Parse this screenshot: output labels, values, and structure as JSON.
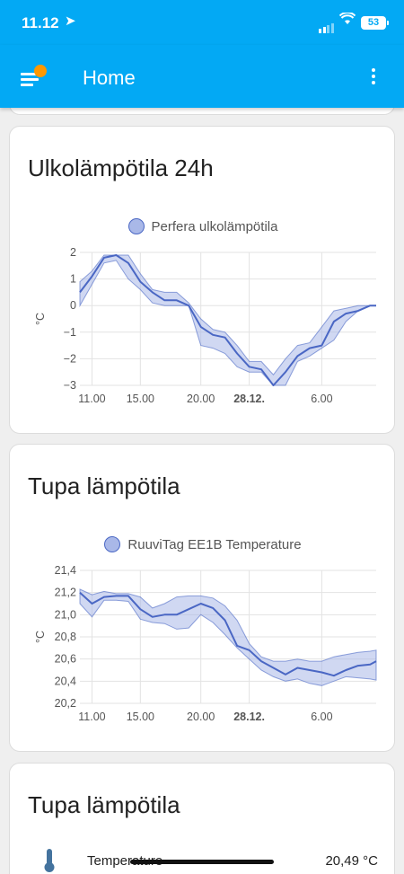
{
  "status_bar": {
    "time": "11.12",
    "battery": "53"
  },
  "app_bar": {
    "title": "Home"
  },
  "colors": {
    "primary": "#03a9f4",
    "badge": "#ff9800",
    "line": "#4a67c4",
    "band": "#a9b8e8"
  },
  "cards": [
    {
      "title": "Ulkolämpötila 24h",
      "legend": "Perfera ulkolämpötila",
      "ylabel": "°C",
      "yticks": [
        "2",
        "1",
        "0",
        "−1",
        "−2",
        "−3"
      ],
      "xticks": [
        {
          "label": "11.00",
          "bold": false
        },
        {
          "label": "15.00",
          "bold": false
        },
        {
          "label": "20.00",
          "bold": false
        },
        {
          "label": "28.12.",
          "bold": true
        },
        {
          "label": "6.00",
          "bold": false
        }
      ]
    },
    {
      "title": "Tupa lämpötila",
      "legend": "RuuviTag EE1B Temperature",
      "ylabel": "°C",
      "yticks": [
        "21,4",
        "21,2",
        "21,0",
        "20,8",
        "20,6",
        "20,4",
        "20,2"
      ],
      "xticks": [
        {
          "label": "11.00",
          "bold": false
        },
        {
          "label": "15.00",
          "bold": false
        },
        {
          "label": "20.00",
          "bold": false
        },
        {
          "label": "28.12.",
          "bold": true
        },
        {
          "label": "6.00",
          "bold": false
        }
      ]
    },
    {
      "title": "Tupa lämpötila",
      "entity": {
        "name": "Temperature",
        "value": "20,49 °C",
        "icon": "thermometer-icon"
      }
    }
  ],
  "chart_data": [
    {
      "type": "line",
      "title": "Ulkolämpötila 24h",
      "ylabel": "°C",
      "ylim": [
        -3,
        2
      ],
      "x_range_hours": [
        10,
        34.5
      ],
      "x_ticks": [
        "11.00",
        "15.00",
        "20.00",
        "28.12.",
        "6.00"
      ],
      "series": [
        {
          "name": "Perfera ulkolämpötila",
          "x_hours": [
            10,
            11,
            12,
            13,
            14,
            15,
            16,
            17,
            18,
            19,
            20,
            21,
            22,
            23,
            24,
            25,
            26,
            27,
            28,
            29,
            30,
            31,
            32,
            33,
            34,
            34.5
          ],
          "mean": [
            0.5,
            1.1,
            1.8,
            1.9,
            1.6,
            0.9,
            0.5,
            0.2,
            0.2,
            0,
            -0.8,
            -1.1,
            -1.2,
            -1.8,
            -2.3,
            -2.4,
            -3,
            -2.5,
            -1.9,
            -1.6,
            -1.5,
            -0.6,
            -0.3,
            -0.2,
            0,
            0
          ],
          "min": [
            0,
            0.8,
            1.6,
            1.7,
            1.0,
            0.6,
            0.1,
            0,
            0,
            0,
            -1.5,
            -1.6,
            -1.8,
            -2.3,
            -2.5,
            -2.5,
            -3,
            -3,
            -2.1,
            -1.9,
            -1.6,
            -1.3,
            -0.6,
            -0.2,
            0,
            0
          ],
          "max": [
            0.9,
            1.3,
            1.9,
            1.9,
            1.9,
            1.2,
            0.6,
            0.5,
            0.5,
            0.1,
            -0.5,
            -0.9,
            -1.0,
            -1.5,
            -2.1,
            -2.1,
            -2.6,
            -2.0,
            -1.5,
            -1.4,
            -0.8,
            -0.2,
            -0.1,
            0,
            0,
            0
          ]
        }
      ]
    },
    {
      "type": "line",
      "title": "Tupa lämpötila",
      "ylabel": "°C",
      "ylim": [
        20.2,
        21.4
      ],
      "x_range_hours": [
        10,
        34.5
      ],
      "x_ticks": [
        "11.00",
        "15.00",
        "20.00",
        "28.12.",
        "6.00"
      ],
      "series": [
        {
          "name": "RuuviTag EE1B Temperature",
          "x_hours": [
            10,
            11,
            12,
            13,
            14,
            15,
            16,
            17,
            18,
            19,
            20,
            21,
            22,
            23,
            24,
            25,
            26,
            27,
            28,
            29,
            30,
            31,
            32,
            33,
            34,
            34.5
          ],
          "mean": [
            21.2,
            21.1,
            21.16,
            21.17,
            21.17,
            21.05,
            20.98,
            21.0,
            21.0,
            21.05,
            21.1,
            21.06,
            20.95,
            20.72,
            20.68,
            20.58,
            20.52,
            20.46,
            20.52,
            20.5,
            20.48,
            20.45,
            20.5,
            20.54,
            20.55,
            20.58
          ],
          "min": [
            21.1,
            20.98,
            21.13,
            21.13,
            21.12,
            20.96,
            20.93,
            20.92,
            20.87,
            20.88,
            21.0,
            20.93,
            20.82,
            20.7,
            20.6,
            20.5,
            20.44,
            20.4,
            20.42,
            20.38,
            20.36,
            20.4,
            20.44,
            20.43,
            20.42,
            20.41
          ],
          "max": [
            21.23,
            21.18,
            21.21,
            21.19,
            21.19,
            21.16,
            21.06,
            21.1,
            21.16,
            21.17,
            21.17,
            21.15,
            21.08,
            20.95,
            20.74,
            20.62,
            20.58,
            20.58,
            20.6,
            20.58,
            20.58,
            20.62,
            20.64,
            20.66,
            20.67,
            20.68
          ]
        }
      ]
    }
  ]
}
